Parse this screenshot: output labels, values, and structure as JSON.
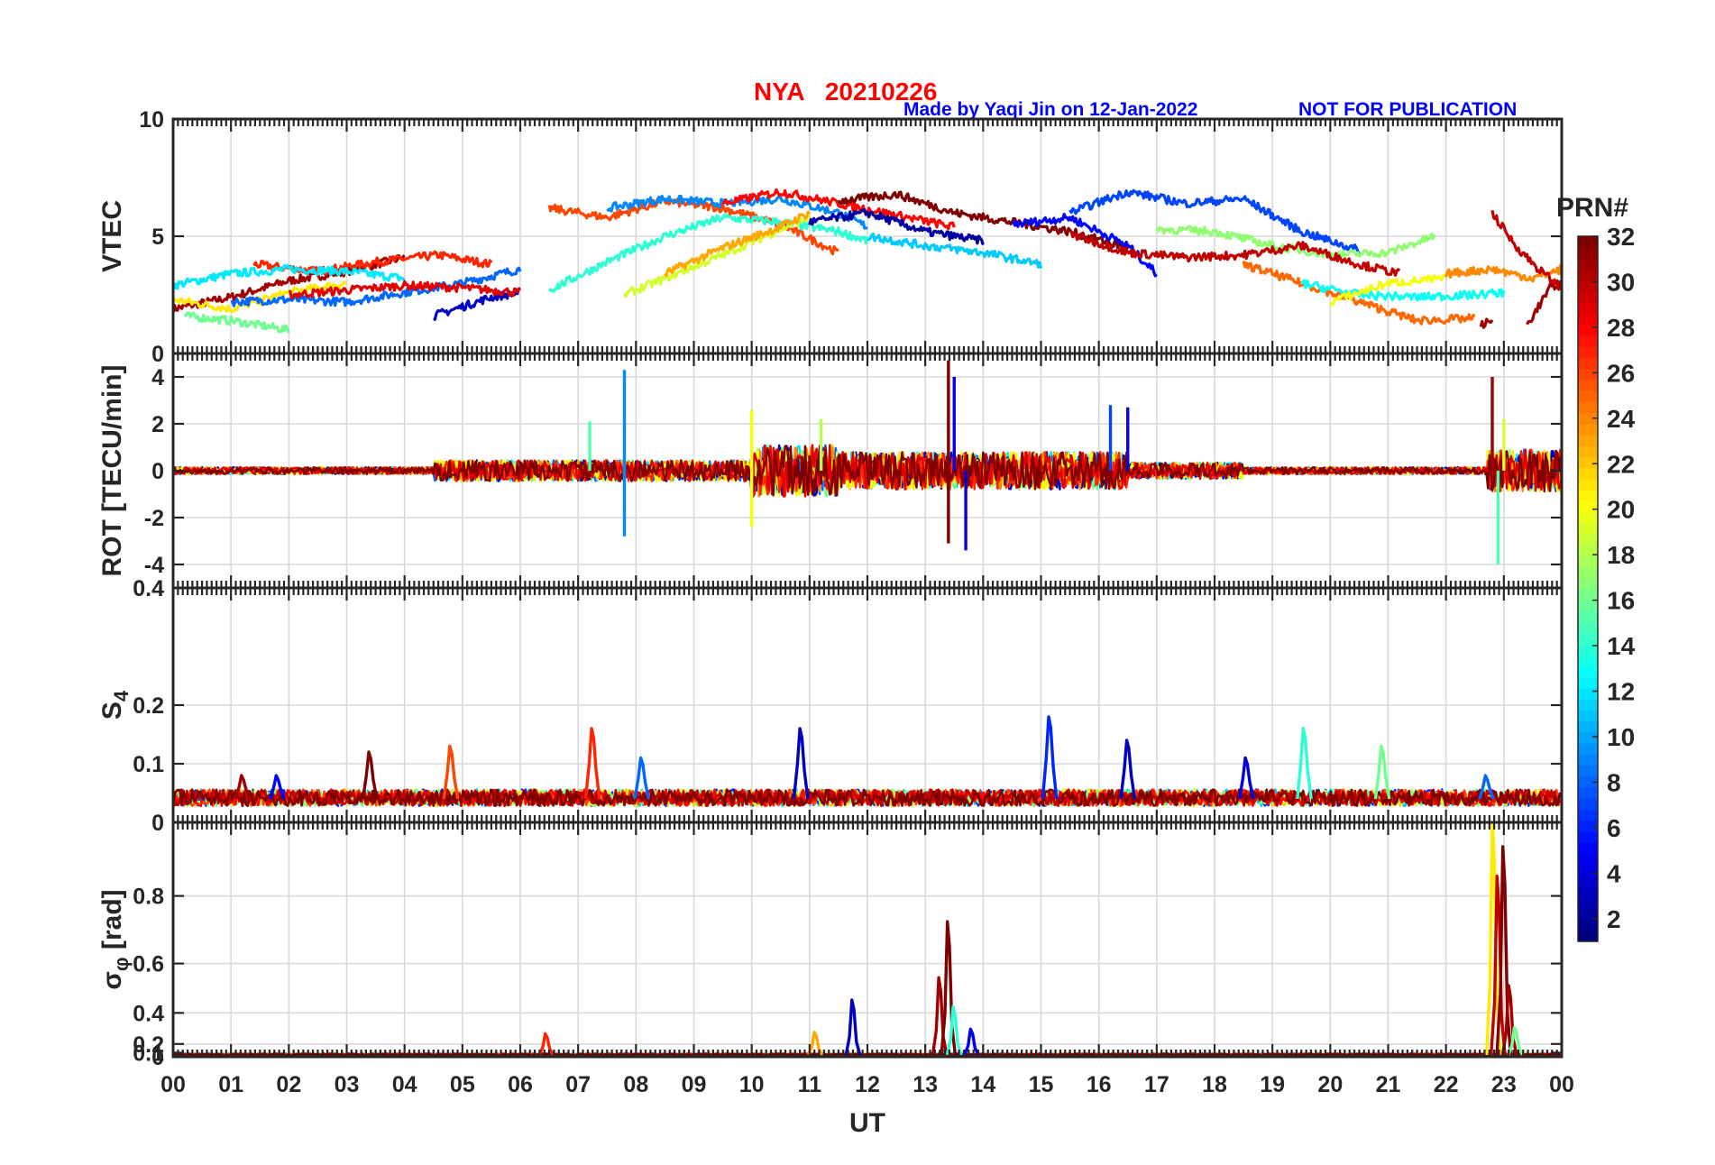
{
  "header": {
    "title": "NYA   20210226",
    "credit": "Made by Yaqi Jin on 12-Jan-2022",
    "notice": "NOT FOR PUBLICATION"
  },
  "colorbar": {
    "title": "PRN#",
    "ticks": [
      "2",
      "4",
      "6",
      "8",
      "10",
      "12",
      "14",
      "16",
      "18",
      "20",
      "22",
      "24",
      "26",
      "28",
      "30",
      "32"
    ],
    "range": [
      1,
      32
    ],
    "colormap": "jet"
  },
  "chart_data": {
    "type": "line",
    "xlabel": "UT",
    "x_ticks": [
      "00",
      "01",
      "02",
      "03",
      "04",
      "05",
      "06",
      "07",
      "08",
      "09",
      "10",
      "11",
      "12",
      "13",
      "14",
      "15",
      "16",
      "17",
      "18",
      "19",
      "20",
      "21",
      "22",
      "23",
      "00"
    ],
    "xlim": [
      0,
      24
    ],
    "grid": true,
    "legend": "colorbar on right (PRN# 1-32)",
    "panels": [
      {
        "ylabel": "VTEC",
        "ylim": [
          0,
          10
        ],
        "y_ticks": [
          "0",
          "5",
          "10"
        ],
        "series": [
          {
            "prn": 31,
            "segments": [
              [
                [
                  0.0,
                  1.9
                ],
                [
                  1.0,
                  2.4
                ],
                [
                  2.0,
                  3.1
                ],
                [
                  3.0,
                  3.5
                ],
                [
                  4.0,
                  4.1
                ]
              ]
            ]
          },
          {
            "prn": 27,
            "segments": [
              [
                [
                  1.4,
                  3.8
                ],
                [
                  2.5,
                  3.5
                ],
                [
                  3.5,
                  3.9
                ],
                [
                  4.6,
                  4.2
                ],
                [
                  5.5,
                  3.8
                ]
              ]
            ]
          },
          {
            "prn": 12,
            "segments": [
              [
                [
                  0.0,
                  2.9
                ],
                [
                  1.0,
                  3.4
                ],
                [
                  2.0,
                  3.6
                ],
                [
                  3.0,
                  3.5
                ],
                [
                  4.0,
                  3.2
                ]
              ]
            ]
          },
          {
            "prn": 21,
            "segments": [
              [
                [
                  0.0,
                  2.3
                ],
                [
                  1.0,
                  1.9
                ],
                [
                  2.0,
                  2.6
                ],
                [
                  3.0,
                  3.0
                ]
              ]
            ]
          },
          {
            "prn": 16,
            "segments": [
              [
                [
                  0.2,
                  1.6
                ],
                [
                  1.0,
                  1.4
                ],
                [
                  2.0,
                  1.0
                ]
              ]
            ]
          },
          {
            "prn": 8,
            "segments": [
              [
                [
                  1.0,
                  2.2
                ],
                [
                  2.0,
                  2.3
                ],
                [
                  3.0,
                  2.2
                ],
                [
                  4.0,
                  2.6
                ],
                [
                  5.0,
                  3.0
                ],
                [
                  6.0,
                  3.6
                ]
              ]
            ]
          },
          {
            "prn": 3,
            "segments": [
              [
                [
                  4.5,
                  1.6
                ],
                [
                  5.5,
                  2.4
                ],
                [
                  6.0,
                  2.6
                ]
              ]
            ]
          },
          {
            "prn": 29,
            "segments": [
              [
                [
                  2.0,
                  2.5
                ],
                [
                  3.0,
                  2.7
                ],
                [
                  4.0,
                  2.9
                ],
                [
                  5.0,
                  2.8
                ],
                [
                  6.0,
                  2.6
                ]
              ]
            ]
          },
          {
            "prn": 26,
            "segments": [
              [
                [
                  6.5,
                  6.2
                ],
                [
                  7.5,
                  5.8
                ],
                [
                  8.5,
                  6.5
                ],
                [
                  9.5,
                  6.2
                ],
                [
                  10.5,
                  5.5
                ],
                [
                  11.5,
                  4.3
                ]
              ]
            ]
          },
          {
            "prn": 9,
            "segments": [
              [
                [
                  7.5,
                  6.2
                ],
                [
                  8.5,
                  6.6
                ],
                [
                  9.5,
                  6.4
                ],
                [
                  10.5,
                  6.6
                ],
                [
                  11.5,
                  6.0
                ],
                [
                  12.0,
                  5.4
                ]
              ]
            ]
          },
          {
            "prn": 14,
            "segments": [
              [
                [
                  6.5,
                  2.7
                ],
                [
                  7.5,
                  3.9
                ],
                [
                  8.5,
                  5.0
                ],
                [
                  9.5,
                  5.8
                ],
                [
                  10.5,
                  5.6
                ],
                [
                  11.5,
                  5.2
                ],
                [
                  12.0,
                  4.8
                ]
              ]
            ]
          },
          {
            "prn": 19,
            "segments": [
              [
                [
                  7.8,
                  2.5
                ],
                [
                  8.5,
                  3.2
                ],
                [
                  9.5,
                  4.2
                ],
                [
                  10.5,
                  5.3
                ],
                [
                  11.0,
                  5.8
                ]
              ]
            ]
          },
          {
            "prn": 23,
            "segments": [
              [
                [
                  8.5,
                  3.4
                ],
                [
                  9.5,
                  4.5
                ],
                [
                  10.5,
                  5.4
                ],
                [
                  11.0,
                  6.0
                ]
              ]
            ]
          },
          {
            "prn": 28,
            "segments": [
              [
                [
                  9.5,
                  6.4
                ],
                [
                  10.5,
                  6.9
                ],
                [
                  11.5,
                  6.4
                ],
                [
                  12.5,
                  5.9
                ],
                [
                  13.5,
                  5.4
                ]
              ]
            ]
          },
          {
            "prn": 32,
            "segments": [
              [
                [
                  11.5,
                  6.5
                ],
                [
                  12.5,
                  6.8
                ],
                [
                  13.5,
                  6.0
                ],
                [
                  14.5,
                  5.6
                ],
                [
                  15.5,
                  5.2
                ],
                [
                  16.5,
                  4.5
                ]
              ]
            ]
          },
          {
            "prn": 2,
            "segments": [
              [
                [
                  11.0,
                  5.6
                ],
                [
                  12.0,
                  6.0
                ],
                [
                  13.0,
                  5.2
                ],
                [
                  14.0,
                  4.8
                ]
              ]
            ]
          },
          {
            "prn": 5,
            "segments": [
              [
                [
                  14.5,
                  5.5
                ],
                [
                  15.5,
                  5.8
                ],
                [
                  16.5,
                  4.6
                ],
                [
                  17.0,
                  3.4
                ]
              ]
            ]
          },
          {
            "prn": 11,
            "segments": [
              [
                [
                  12.0,
                  5.0
                ],
                [
                  13.0,
                  4.6
                ],
                [
                  14.0,
                  4.3
                ],
                [
                  15.0,
                  3.8
                ]
              ]
            ]
          },
          {
            "prn": 7,
            "segments": [
              [
                [
                  15.5,
                  6.0
                ],
                [
                  16.5,
                  6.9
                ],
                [
                  17.5,
                  6.4
                ],
                [
                  18.5,
                  6.6
                ],
                [
                  19.5,
                  5.2
                ],
                [
                  20.5,
                  4.4
                ]
              ]
            ]
          },
          {
            "prn": 17,
            "segments": [
              [
                [
                  17.0,
                  5.3
                ],
                [
                  18.0,
                  5.2
                ],
                [
                  19.0,
                  4.6
                ],
                [
                  20.0,
                  4.2
                ],
                [
                  21.0,
                  4.3
                ],
                [
                  21.8,
                  5.0
                ]
              ]
            ]
          },
          {
            "prn": 30,
            "segments": [
              [
                [
                  15.5,
                  5.1
                ],
                [
                  16.5,
                  4.3
                ],
                [
                  17.5,
                  4.1
                ],
                [
                  18.5,
                  4.2
                ],
                [
                  19.5,
                  4.6
                ],
                [
                  20.5,
                  3.8
                ],
                [
                  21.2,
                  3.4
                ]
              ]
            ]
          },
          {
            "prn": 25,
            "segments": [
              [
                [
                  18.5,
                  3.8
                ],
                [
                  19.5,
                  3.0
                ],
                [
                  20.5,
                  2.2
                ],
                [
                  21.5,
                  1.4
                ],
                [
                  22.5,
                  1.5
                ]
              ]
            ]
          },
          {
            "prn": 13,
            "segments": [
              [
                [
                  19.5,
                  3.0
                ],
                [
                  20.5,
                  2.5
                ],
                [
                  21.5,
                  2.4
                ],
                [
                  22.5,
                  2.5
                ],
                [
                  23.0,
                  2.6
                ]
              ]
            ]
          },
          {
            "prn": 20,
            "segments": [
              [
                [
                  20.0,
                  2.2
                ],
                [
                  21.0,
                  3.0
                ],
                [
                  22.0,
                  3.2
                ]
              ]
            ]
          },
          {
            "prn": 24,
            "segments": [
              [
                [
                  22.0,
                  3.4
                ],
                [
                  22.8,
                  3.6
                ],
                [
                  23.5,
                  3.2
                ],
                [
                  24.0,
                  3.6
                ]
              ]
            ]
          },
          {
            "prn": 31,
            "segments": [
              [
                [
                  22.6,
                  1.2
                ],
                [
                  22.8,
                  1.4
                ]
              ],
              [
                [
                  23.4,
                  1.2
                ],
                [
                  23.8,
                  2.8
                ],
                [
                  24.0,
                  3.0
                ]
              ]
            ]
          },
          {
            "prn": 30,
            "segments": [
              [
                [
                  22.8,
                  6.0
                ],
                [
                  23.2,
                  4.6
                ],
                [
                  23.6,
                  3.6
                ],
                [
                  24.0,
                  2.8
                ]
              ]
            ]
          }
        ]
      },
      {
        "ylabel": "ROT [TECU/min]",
        "ylim": [
          -5,
          5
        ],
        "y_ticks": [
          "-4",
          "-2",
          "0",
          "2",
          "4"
        ],
        "peaks": [
          {
            "x": 7.8,
            "y": 4.3,
            "prn": 9
          },
          {
            "x": 7.8,
            "y": -2.8,
            "prn": 9
          },
          {
            "x": 7.2,
            "y": 2.1,
            "prn": 15
          },
          {
            "x": 10.0,
            "y": 2.6,
            "prn": 20
          },
          {
            "x": 10.0,
            "y": -2.4,
            "prn": 20
          },
          {
            "x": 11.2,
            "y": 2.2,
            "prn": 18
          },
          {
            "x": 13.4,
            "y": 4.7,
            "prn": 32
          },
          {
            "x": 13.4,
            "y": -3.1,
            "prn": 32
          },
          {
            "x": 13.5,
            "y": 4.0,
            "prn": 4
          },
          {
            "x": 13.7,
            "y": -3.4,
            "prn": 4
          },
          {
            "x": 16.2,
            "y": 2.8,
            "prn": 7
          },
          {
            "x": 16.5,
            "y": 2.7,
            "prn": 4
          },
          {
            "x": 22.8,
            "y": 4.0,
            "prn": 31
          },
          {
            "x": 22.9,
            "y": -4.0,
            "prn": 15
          },
          {
            "x": 23.0,
            "y": 2.2,
            "prn": 19
          }
        ]
      },
      {
        "ylabel": "S4",
        "ylim": [
          0,
          0.4
        ],
        "y_ticks": [
          "0",
          "0.1",
          "0.2",
          "0.4"
        ],
        "baseline": 0.04,
        "peaks": [
          {
            "x": 1.2,
            "y": 0.08,
            "prn": 31
          },
          {
            "x": 1.8,
            "y": 0.08,
            "prn": 5
          },
          {
            "x": 3.4,
            "y": 0.12,
            "prn": 32
          },
          {
            "x": 4.8,
            "y": 0.13,
            "prn": 26
          },
          {
            "x": 7.25,
            "y": 0.16,
            "prn": 27
          },
          {
            "x": 8.1,
            "y": 0.11,
            "prn": 8
          },
          {
            "x": 10.85,
            "y": 0.16,
            "prn": 3
          },
          {
            "x": 15.15,
            "y": 0.18,
            "prn": 6
          },
          {
            "x": 16.5,
            "y": 0.14,
            "prn": 3
          },
          {
            "x": 18.55,
            "y": 0.11,
            "prn": 4
          },
          {
            "x": 19.55,
            "y": 0.16,
            "prn": 14
          },
          {
            "x": 20.9,
            "y": 0.13,
            "prn": 16
          },
          {
            "x": 22.7,
            "y": 0.08,
            "prn": 8
          }
        ]
      },
      {
        "ylabel": "σ_φ [rad]",
        "ylim": [
          0,
          1
        ],
        "y_ticks": [
          "0",
          "0.1",
          "0.2",
          "0.4",
          "0.6",
          "0.8"
        ],
        "baseline": 0.06,
        "peaks": [
          {
            "x": 6.45,
            "y": 0.28,
            "prn": 27
          },
          {
            "x": 11.1,
            "y": 0.29,
            "prn": 23
          },
          {
            "x": 11.75,
            "y": 0.46,
            "prn": 3
          },
          {
            "x": 13.25,
            "y": 0.55,
            "prn": 31
          },
          {
            "x": 13.4,
            "y": 0.73,
            "prn": 32
          },
          {
            "x": 13.5,
            "y": 0.43,
            "prn": 14
          },
          {
            "x": 13.8,
            "y": 0.31,
            "prn": 4
          },
          {
            "x": 22.82,
            "y": 0.98,
            "prn": 21
          },
          {
            "x": 22.9,
            "y": 0.85,
            "prn": 30
          },
          {
            "x": 23.0,
            "y": 0.92,
            "prn": 32
          },
          {
            "x": 23.1,
            "y": 0.52,
            "prn": 31
          },
          {
            "x": 23.2,
            "y": 0.32,
            "prn": 16
          }
        ]
      }
    ]
  }
}
